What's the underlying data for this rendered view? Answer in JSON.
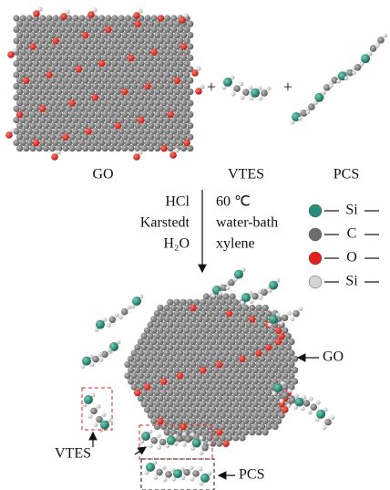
{
  "top": {
    "labels": [
      "GO",
      "VTES",
      "PCS"
    ]
  },
  "conditions": {
    "left": [
      "HCl",
      "Karstedt",
      "H₂O"
    ],
    "right": [
      "60 ℃",
      "water-bath",
      "xylene"
    ]
  },
  "legend": [
    {
      "label": "Si",
      "color": "#2a8c7a"
    },
    {
      "label": "C",
      "color": "#6d6d6d"
    },
    {
      "label": "O",
      "color": "#e0201a"
    },
    {
      "label": "Si",
      "color": "#d4d4d4"
    }
  ],
  "product": {
    "labels": [
      "GO",
      "VTES",
      "PCS"
    ]
  }
}
